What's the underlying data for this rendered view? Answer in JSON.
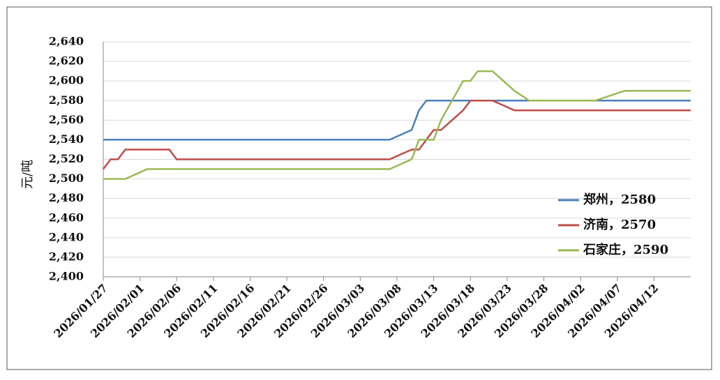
{
  "chart_data": {
    "type": "line",
    "ylabel": "元/吨",
    "x": [
      "2026/01/27",
      "2026/01/28",
      "2026/01/29",
      "2026/01/30",
      "2026/02/02",
      "2026/02/05",
      "2026/02/06",
      "2026/03/07",
      "2026/03/10",
      "2026/03/11",
      "2026/03/12",
      "2026/03/13",
      "2026/03/14",
      "2026/03/17",
      "2026/03/18",
      "2026/03/19",
      "2026/03/21",
      "2026/03/24",
      "2026/03/26",
      "2026/04/04",
      "2026/04/08",
      "2026/04/17"
    ],
    "series": [
      {
        "name": "郑州，2580",
        "color": "#4a7ebb",
        "values": [
          2540,
          2540,
          2540,
          2540,
          2540,
          2540,
          2540,
          2540,
          2550,
          2570,
          2580,
          2580,
          2580,
          2580,
          2580,
          2580,
          2580,
          2580,
          2580,
          2580,
          2580,
          2580
        ]
      },
      {
        "name": "济南，2570",
        "color": "#be4b48",
        "values": [
          2510,
          2520,
          2520,
          2530,
          2530,
          2530,
          2520,
          2520,
          2530,
          2530,
          2540,
          2550,
          2550,
          2570,
          2580,
          2580,
          2580,
          2570,
          2570,
          2570,
          2570,
          2570
        ]
      },
      {
        "name": "石家庄，2590",
        "color": "#98b954",
        "values": [
          2500,
          2500,
          2500,
          2500,
          2510,
          2510,
          2510,
          2510,
          2520,
          2540,
          2540,
          2540,
          2560,
          2600,
          2600,
          2610,
          2610,
          2590,
          2580,
          2580,
          2590,
          2590
        ]
      }
    ],
    "xlim": [
      "2026/01/27",
      "2026/04/17"
    ],
    "xticks": [
      "2026/01/27",
      "2026/02/01",
      "2026/02/06",
      "2026/02/11",
      "2026/02/16",
      "2026/02/21",
      "2026/02/26",
      "2026/03/03",
      "2026/03/08",
      "2026/03/13",
      "2026/03/18",
      "2026/03/23",
      "2026/03/28",
      "2026/04/02",
      "2026/04/07",
      "2026/04/12"
    ],
    "ylim": [
      2400,
      2640
    ],
    "yticks": [
      {
        "value": 2400,
        "label": "2,400"
      },
      {
        "value": 2420,
        "label": "2,420"
      },
      {
        "value": 2440,
        "label": "2,440"
      },
      {
        "value": 2460,
        "label": "2,460"
      },
      {
        "value": 2480,
        "label": "2,480"
      },
      {
        "value": 2500,
        "label": "2,500"
      },
      {
        "value": 2520,
        "label": "2,520"
      },
      {
        "value": 2540,
        "label": "2,540"
      },
      {
        "value": 2560,
        "label": "2,560"
      },
      {
        "value": 2580,
        "label": "2,580"
      },
      {
        "value": 2600,
        "label": "2,600"
      },
      {
        "value": 2620,
        "label": "2,620"
      },
      {
        "value": 2640,
        "label": "2,640"
      }
    ],
    "grid": true,
    "legend": "right"
  }
}
